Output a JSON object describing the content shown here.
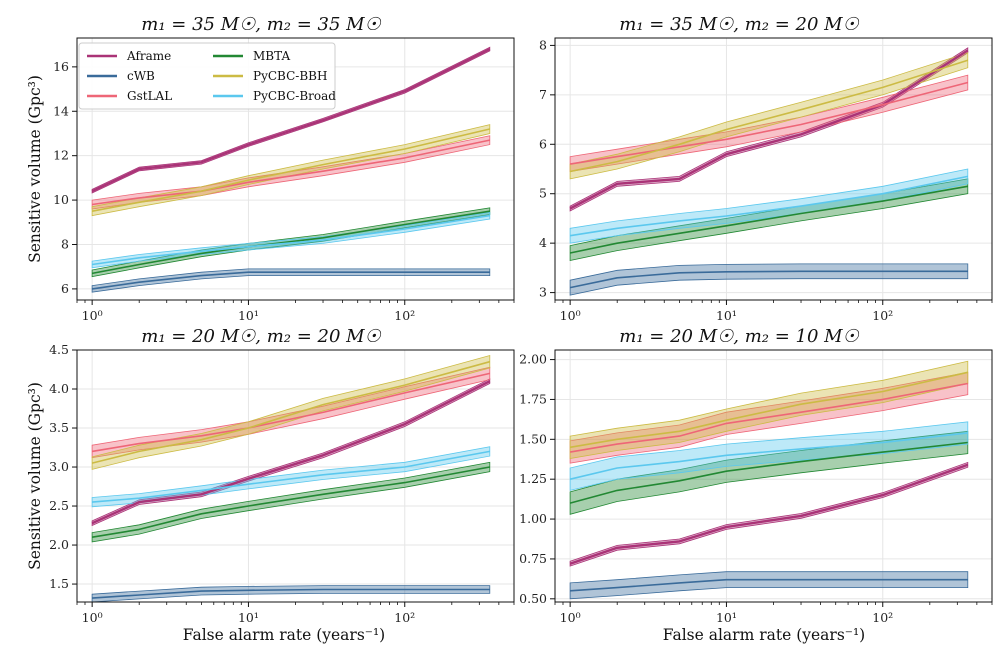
{
  "figure": {
    "xlabel": "False alarm rate (years⁻¹)",
    "ylabel": "Sensitive volume (Gpc³)"
  },
  "legend": {
    "entries": [
      {
        "name": "Aframe",
        "color": "#aa3377"
      },
      {
        "name": "cWB",
        "color": "#3a6b9a"
      },
      {
        "name": "GstLAL",
        "color": "#ee6677"
      },
      {
        "name": "MBTA",
        "color": "#228833"
      },
      {
        "name": "PyCBC-BBH",
        "color": "#ccbb44"
      },
      {
        "name": "PyCBC-Broad",
        "color": "#5bc8ee"
      }
    ]
  },
  "chart_data": [
    {
      "type": "line",
      "title": "m₁ = 35 M☉, m₂ = 35 M☉",
      "xscale": "log",
      "xlim": [
        0.8,
        500
      ],
      "ylim": [
        5.5,
        17.3
      ],
      "yticks": [
        6,
        8,
        10,
        12,
        14,
        16
      ],
      "xticks": [
        "10⁰",
        "10¹",
        "10²"
      ],
      "x": [
        1,
        2,
        5,
        10,
        30,
        100,
        350
      ],
      "series": [
        {
          "name": "Aframe",
          "values": [
            10.4,
            11.4,
            11.7,
            12.5,
            13.6,
            14.9,
            16.8
          ],
          "band": 0.08
        },
        {
          "name": "cWB",
          "values": [
            6.0,
            6.3,
            6.6,
            6.75,
            6.75,
            6.75,
            6.75
          ],
          "band": 0.15
        },
        {
          "name": "GstLAL",
          "values": [
            9.8,
            10.1,
            10.4,
            10.8,
            11.3,
            11.9,
            12.7
          ],
          "band": 0.2
        },
        {
          "name": "MBTA",
          "values": [
            6.7,
            7.1,
            7.6,
            7.9,
            8.3,
            8.9,
            9.5
          ],
          "band": 0.15
        },
        {
          "name": "PyCBC-BBH",
          "values": [
            9.5,
            9.9,
            10.4,
            10.9,
            11.6,
            12.3,
            13.2
          ],
          "band": 0.2
        },
        {
          "name": "PyCBC-Broad",
          "values": [
            7.1,
            7.4,
            7.7,
            7.9,
            8.2,
            8.7,
            9.3
          ],
          "band": 0.15
        }
      ]
    },
    {
      "type": "line",
      "title": "m₁ = 35 M☉, m₂ = 20 M☉",
      "xscale": "log",
      "xlim": [
        0.8,
        500
      ],
      "ylim": [
        2.85,
        8.15
      ],
      "yticks": [
        3,
        4,
        5,
        6,
        7,
        8
      ],
      "xticks": [
        "10⁰",
        "10¹",
        "10²"
      ],
      "x": [
        1,
        2,
        5,
        10,
        30,
        100,
        350
      ],
      "series": [
        {
          "name": "Aframe",
          "values": [
            4.7,
            5.2,
            5.3,
            5.8,
            6.2,
            6.8,
            7.9
          ],
          "band": 0.05
        },
        {
          "name": "cWB",
          "values": [
            3.1,
            3.3,
            3.4,
            3.42,
            3.43,
            3.43,
            3.43
          ],
          "band": 0.15
        },
        {
          "name": "GstLAL",
          "values": [
            5.6,
            5.75,
            5.95,
            6.1,
            6.4,
            6.8,
            7.25
          ],
          "band": 0.15
        },
        {
          "name": "MBTA",
          "values": [
            3.8,
            4.0,
            4.2,
            4.35,
            4.6,
            4.85,
            5.15
          ],
          "band": 0.15
        },
        {
          "name": "PyCBC-BBH",
          "values": [
            5.45,
            5.65,
            6.0,
            6.3,
            6.7,
            7.15,
            7.7
          ],
          "band": 0.15
        },
        {
          "name": "PyCBC-Broad",
          "values": [
            4.15,
            4.3,
            4.45,
            4.55,
            4.75,
            5.0,
            5.35
          ],
          "band": 0.15
        }
      ]
    },
    {
      "type": "line",
      "title": "m₁ = 20 M☉, m₂ = 20 M☉",
      "xscale": "log",
      "xlim": [
        0.8,
        500
      ],
      "ylim": [
        1.27,
        4.5
      ],
      "yticks": [
        1.5,
        2.0,
        2.5,
        3.0,
        3.5,
        4.0,
        4.5
      ],
      "xticks": [
        "10⁰",
        "10¹",
        "10²"
      ],
      "x": [
        1,
        2,
        5,
        10,
        30,
        100,
        350
      ],
      "series": [
        {
          "name": "Aframe",
          "values": [
            2.28,
            2.55,
            2.65,
            2.85,
            3.15,
            3.55,
            4.1
          ],
          "band": 0.03
        },
        {
          "name": "cWB",
          "values": [
            1.32,
            1.36,
            1.41,
            1.42,
            1.43,
            1.43,
            1.43
          ],
          "band": 0.05
        },
        {
          "name": "GstLAL",
          "values": [
            3.2,
            3.3,
            3.4,
            3.5,
            3.7,
            3.95,
            4.2
          ],
          "band": 0.08
        },
        {
          "name": "MBTA",
          "values": [
            2.1,
            2.2,
            2.4,
            2.5,
            2.65,
            2.8,
            3.0
          ],
          "band": 0.06
        },
        {
          "name": "PyCBC-BBH",
          "values": [
            3.05,
            3.2,
            3.35,
            3.5,
            3.8,
            4.05,
            4.35
          ],
          "band": 0.08
        },
        {
          "name": "PyCBC-Broad",
          "values": [
            2.55,
            2.6,
            2.7,
            2.78,
            2.9,
            3.0,
            3.2
          ],
          "band": 0.06
        }
      ]
    },
    {
      "type": "line",
      "title": "m₁ = 20 M☉, m₂ = 10 M☉",
      "xscale": "log",
      "xlim": [
        0.8,
        500
      ],
      "ylim": [
        0.48,
        2.06
      ],
      "yticks": [
        0.5,
        0.75,
        1.0,
        1.25,
        1.5,
        1.75,
        2.0
      ],
      "xticks": [
        "10⁰",
        "10¹",
        "10²"
      ],
      "x": [
        1,
        2,
        5,
        10,
        30,
        100,
        350
      ],
      "series": [
        {
          "name": "Aframe",
          "values": [
            0.72,
            0.82,
            0.86,
            0.95,
            1.02,
            1.15,
            1.34
          ],
          "band": 0.015
        },
        {
          "name": "cWB",
          "values": [
            0.55,
            0.57,
            0.6,
            0.62,
            0.62,
            0.62,
            0.62
          ],
          "band": 0.05
        },
        {
          "name": "GstLAL",
          "values": [
            1.42,
            1.47,
            1.52,
            1.6,
            1.67,
            1.75,
            1.85
          ],
          "band": 0.07
        },
        {
          "name": "MBTA",
          "values": [
            1.1,
            1.18,
            1.24,
            1.3,
            1.36,
            1.42,
            1.48
          ],
          "band": 0.07
        },
        {
          "name": "PyCBC-BBH",
          "values": [
            1.45,
            1.5,
            1.55,
            1.62,
            1.72,
            1.8,
            1.92
          ],
          "band": 0.07
        },
        {
          "name": "PyCBC-Broad",
          "values": [
            1.25,
            1.32,
            1.36,
            1.4,
            1.44,
            1.48,
            1.54
          ],
          "band": 0.07
        }
      ]
    }
  ]
}
